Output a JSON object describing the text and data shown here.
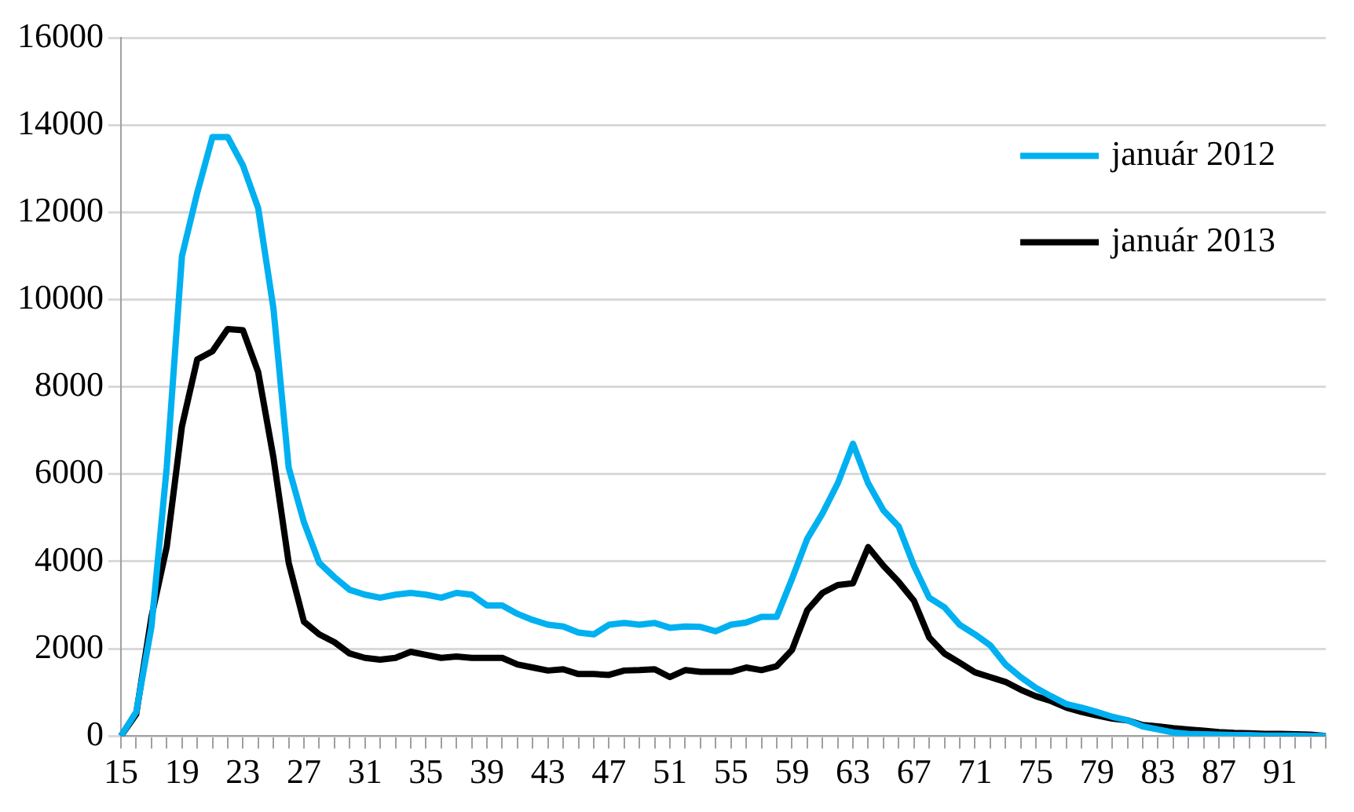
{
  "chart_data": {
    "type": "line",
    "categories": [
      "15",
      null,
      null,
      null,
      "19",
      null,
      null,
      null,
      "23",
      null,
      null,
      null,
      "27",
      null,
      null,
      null,
      "31",
      null,
      null,
      null,
      "35",
      null,
      null,
      null,
      "39",
      null,
      null,
      null,
      "43",
      null,
      null,
      null,
      "47",
      null,
      null,
      null,
      "51",
      null,
      null,
      null,
      "55",
      null,
      null,
      null,
      "59",
      null,
      null,
      null,
      "63",
      null,
      null,
      null,
      "67",
      null,
      null,
      null,
      "71",
      null,
      null,
      null,
      "75",
      null,
      null,
      null,
      "79",
      null,
      null,
      null,
      "83",
      null,
      null,
      null,
      "87",
      null,
      null,
      null,
      "91",
      null,
      null,
      null
    ],
    "series": [
      {
        "name": "január 2012",
        "color": "#00b0f0",
        "values": [
          0,
          550,
          2500,
          6150,
          11000,
          12450,
          13730,
          13730,
          13080,
          12100,
          9800,
          6150,
          4900,
          3970,
          3640,
          3350,
          3240,
          3170,
          3240,
          3280,
          3240,
          3170,
          3280,
          3240,
          2990,
          2990,
          2800,
          2660,
          2550,
          2510,
          2370,
          2330,
          2550,
          2590,
          2550,
          2590,
          2480,
          2510,
          2500,
          2400,
          2550,
          2600,
          2730,
          2730,
          3600,
          4520,
          5100,
          5790,
          6700,
          5790,
          5170,
          4800,
          3900,
          3170,
          2950,
          2550,
          2330,
          2080,
          1640,
          1350,
          1100,
          910,
          730,
          650,
          550,
          440,
          360,
          220,
          150,
          80,
          50,
          40,
          30,
          20,
          20,
          10,
          10,
          10,
          0,
          0
        ]
      },
      {
        "name": "január 2013",
        "color": "#000000",
        "values": [
          0,
          500,
          2730,
          4330,
          7100,
          8630,
          8820,
          9330,
          9300,
          8340,
          6380,
          3970,
          2620,
          2330,
          2150,
          1890,
          1790,
          1750,
          1790,
          1930,
          1860,
          1790,
          1820,
          1790,
          1790,
          1790,
          1640,
          1570,
          1500,
          1530,
          1420,
          1420,
          1400,
          1500,
          1510,
          1530,
          1350,
          1510,
          1470,
          1470,
          1470,
          1570,
          1510,
          1600,
          1970,
          2880,
          3280,
          3460,
          3500,
          4330,
          3900,
          3530,
          3100,
          2260,
          1890,
          1680,
          1460,
          1350,
          1240,
          1060,
          910,
          800,
          650,
          550,
          470,
          400,
          360,
          250,
          220,
          180,
          150,
          120,
          90,
          70,
          60,
          50,
          50,
          40,
          30,
          0
        ]
      }
    ],
    "ylim": [
      0,
      16000
    ],
    "yticks": [
      0,
      2000,
      4000,
      6000,
      8000,
      10000,
      12000,
      14000,
      16000
    ],
    "grid": "y",
    "legend": "top right",
    "marker": "none",
    "line_style": "solid"
  }
}
